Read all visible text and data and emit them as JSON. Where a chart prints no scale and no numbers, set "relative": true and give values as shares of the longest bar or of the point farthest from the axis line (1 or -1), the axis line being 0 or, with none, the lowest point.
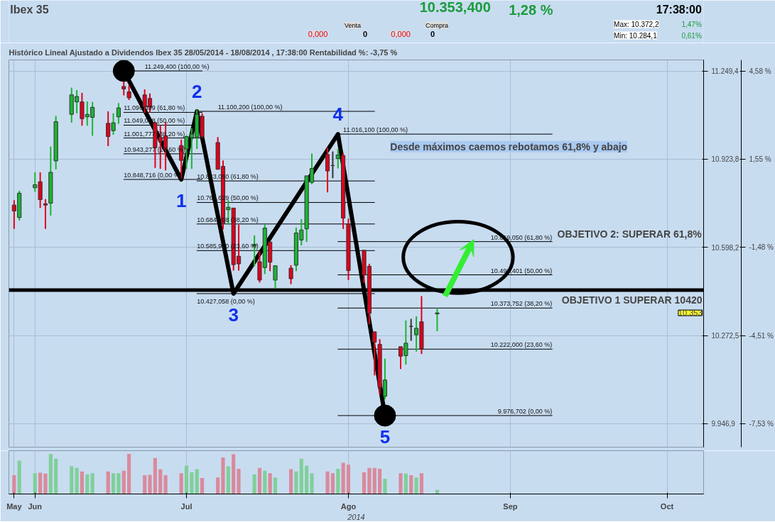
{
  "chart_data": [
    {
      "type": "candlestick",
      "title": "Ibex 35",
      "subtitle": "Histórico Lineal Ajustado a Dividendos Ibex 35 28/05/2014 - 18/08/2014 , 17:38:00 Rentabilidad %: -3,75 %",
      "x": [
        "2014-05-29",
        "2014-05-30",
        "2014-06-02",
        "2014-06-03",
        "2014-06-04",
        "2014-06-05",
        "2014-06-06",
        "2014-06-09",
        "2014-06-10",
        "2014-06-11",
        "2014-06-12",
        "2014-06-13",
        "2014-06-16",
        "2014-06-17",
        "2014-06-18",
        "2014-06-19",
        "2014-06-20",
        "2014-06-23",
        "2014-06-24",
        "2014-06-25",
        "2014-06-26",
        "2014-06-27",
        "2014-06-30",
        "2014-07-01",
        "2014-07-02",
        "2014-07-03",
        "2014-07-04",
        "2014-07-07",
        "2014-07-08",
        "2014-07-09",
        "2014-07-10",
        "2014-07-11",
        "2014-07-14",
        "2014-07-15",
        "2014-07-16",
        "2014-07-17",
        "2014-07-18",
        "2014-07-21",
        "2014-07-22",
        "2014-07-23",
        "2014-07-24",
        "2014-07-25",
        "2014-07-28",
        "2014-07-29",
        "2014-07-30",
        "2014-07-31",
        "2014-08-01",
        "2014-08-04",
        "2014-08-05",
        "2014-08-06",
        "2014-08-07",
        "2014-08-08",
        "2014-08-11",
        "2014-08-12",
        "2014-08-13",
        "2014-08-14",
        "2014-08-15",
        "2014-08-18"
      ],
      "ohlc": [
        [
          10754,
          10772,
          10666,
          10732
        ],
        [
          10708,
          10807,
          10697,
          10798
        ],
        [
          10818,
          10875,
          10803,
          10829
        ],
        [
          10840,
          10875,
          10743,
          10774
        ],
        [
          10759,
          10776,
          10666,
          10754
        ],
        [
          10761,
          10970,
          10715,
          10875
        ],
        [
          10917,
          11084,
          10886,
          11062
        ],
        [
          11089,
          11188,
          11058,
          11161
        ],
        [
          11135,
          11179,
          11093,
          11155
        ],
        [
          11135,
          11168,
          11047,
          11073
        ],
        [
          11080,
          11137,
          11047,
          11089
        ],
        [
          11078,
          11135,
          11010,
          11115
        ],
        [
          11056,
          11100,
          10972,
          11007
        ],
        [
          11029,
          11093,
          11014,
          11058
        ],
        [
          11080,
          11131,
          11054,
          11113
        ],
        [
          11192,
          11210,
          11159,
          11183
        ],
        [
          11172,
          11197,
          11142,
          11150
        ],
        [
          11161,
          11181,
          11095,
          11117
        ],
        [
          11148,
          11166,
          11095,
          11115
        ],
        [
          11058,
          11062,
          10891,
          10966
        ],
        [
          11005,
          11049,
          10888,
          10988
        ],
        [
          11010,
          11060,
          10882,
          10961
        ],
        [
          10974,
          10996,
          10853,
          10919
        ],
        [
          10961,
          11012,
          10888,
          11007
        ],
        [
          11003,
          11038,
          10888,
          11016
        ],
        [
          11005,
          11106,
          10961,
          11089
        ],
        [
          11082,
          11093,
          11001,
          11007
        ],
        [
          10985,
          11005,
          10886,
          10886
        ],
        [
          10897,
          10919,
          10664,
          10686
        ],
        [
          10737,
          10772,
          10682,
          10746
        ],
        [
          10743,
          10743,
          10512,
          10534
        ],
        [
          10565,
          10682,
          10512,
          10537
        ],
        [
          10603,
          10642,
          10528,
          10609
        ],
        [
          10545,
          10583,
          10468,
          10477
        ],
        [
          10523,
          10682,
          10499,
          10669
        ],
        [
          10618,
          10618,
          10510,
          10543
        ],
        [
          10477,
          10530,
          10446,
          10530
        ],
        [
          10521,
          10532,
          10462,
          10482
        ],
        [
          10532,
          10671,
          10510,
          10651
        ],
        [
          10625,
          10702,
          10605,
          10662
        ],
        [
          10666,
          10862,
          10618,
          10862
        ],
        [
          10838,
          10944,
          10831,
          10889
        ],
        [
          10941,
          10966,
          10801,
          10880
        ],
        [
          10900,
          10952,
          10853,
          10900
        ],
        [
          10926,
          10961,
          10889,
          10939
        ],
        [
          10937,
          10946,
          10666,
          10706
        ],
        [
          10684,
          10704,
          10477,
          10512
        ],
        [
          10587,
          10587,
          10466,
          10497
        ],
        [
          10528,
          10537,
          10314,
          10354
        ],
        [
          10286,
          10286,
          10125,
          10248
        ],
        [
          10240,
          10259,
          10055,
          10081
        ],
        [
          10048,
          10187,
          10037,
          10108
        ],
        [
          10231,
          10231,
          10149,
          10196
        ],
        [
          10198,
          10328,
          10165,
          10244
        ],
        [
          10306,
          10334,
          10253,
          10306
        ],
        [
          10275,
          10343,
          10213,
          10299
        ],
        [
          10323,
          10418,
          10204,
          10224
        ],
        [
          10352,
          10374,
          10288,
          10356
        ]
      ],
      "colors": [
        "#e0001b",
        "#1ab532",
        "#1ab532",
        "#e0001b",
        "#e0001b",
        "#1ab532",
        "#1ab532",
        "#1ab532",
        "#1ab532",
        "#e0001b",
        "#1ab532",
        "#1ab532",
        "#e0001b",
        "#1ab532",
        "#1ab532",
        "#e0001b",
        "#e0001b",
        "#e0001b",
        "#e0001b",
        "#e0001b",
        "#e0001b",
        "#e0001b",
        "#e0001b",
        "#1ab532",
        "#1ab532",
        "#1ab532",
        "#e0001b",
        "#e0001b",
        "#e0001b",
        "#1ab532",
        "#e0001b",
        "#e0001b",
        "#1ab532",
        "#e0001b",
        "#1ab532",
        "#e0001b",
        "#1ab532",
        "#e0001b",
        "#1ab532",
        "#1ab532",
        "#1ab532",
        "#1ab532",
        "#e0001b",
        "#333333",
        "#1ab532",
        "#e0001b",
        "#e0001b",
        "#e0001b",
        "#e0001b",
        "#e0001b",
        "#e0001b",
        "#1ab532",
        "#e0001b",
        "#1ab532",
        "#333333",
        "#1ab532",
        "#e0001b",
        "#1ab532"
      ],
      "xlim": [
        "2014-05-28",
        "2014-10-08"
      ],
      "ylim": [
        9860,
        11290
      ],
      "xticks": [
        {
          "value": "2014-05-29",
          "label": null
        },
        {
          "value": "2014-06-02",
          "label": null
        },
        {
          "value": "2014-07-01",
          "label": null
        },
        {
          "value": "2014-08-01",
          "label": null
        },
        {
          "value": "2014-09-01",
          "label": null
        },
        {
          "value": "2014-10-01",
          "label": null
        }
      ],
      "yticks": [
        {
          "value": 11249.4,
          "label": "11.249,4"
        },
        {
          "value": 10923.8,
          "label": "10.923,8"
        },
        {
          "value": 10598.2,
          "label": "10.598,2"
        },
        {
          "value": 10272.5,
          "label": "10.272,5"
        },
        {
          "value": 9946.9,
          "label": "9.946,9"
        }
      ],
      "y2lim": [
        -8.34,
        4.96
      ],
      "y2ticks": [
        {
          "value": 4.58,
          "label": "4,58 %"
        },
        {
          "value": 1.55,
          "label": "1,55 %"
        },
        {
          "value": -1.48,
          "label": "-1,48 %"
        },
        {
          "value": -4.51,
          "label": "-4,51 %"
        },
        {
          "value": -7.53,
          "label": "-7,53 %"
        }
      ],
      "grid": true,
      "tick_labels": "y",
      "series": [
        {
          "type": "line",
          "color": "#000000",
          "x": [
            "2014-06-19",
            "2014-07-04"
          ],
          "values": [
            11249.4,
            11249.4
          ]
        },
        {
          "type": "line",
          "color": "#000000",
          "x": [
            "2014-06-19",
            "2014-07-04"
          ],
          "values": [
            11096.339,
            11096.339
          ]
        },
        {
          "type": "line",
          "color": "#000000",
          "x": [
            "2014-06-19",
            "2014-07-04"
          ],
          "values": [
            11049.058,
            11049.058
          ]
        },
        {
          "type": "line",
          "color": "#000000",
          "x": [
            "2014-06-19",
            "2014-07-04"
          ],
          "values": [
            11001.777,
            11001.777
          ]
        },
        {
          "type": "line",
          "color": "#000000",
          "x": [
            "2014-06-19",
            "2014-07-04"
          ],
          "values": [
            10943.277,
            10943.277
          ]
        },
        {
          "type": "line",
          "color": "#000000",
          "x": [
            "2014-06-19",
            "2014-07-04"
          ],
          "values": [
            10848.716,
            10848.716
          ]
        },
        {
          "type": "line",
          "color": "#000000",
          "x": [
            "2014-07-03",
            "2014-08-06"
          ],
          "values": [
            11100.2,
            11100.2
          ]
        },
        {
          "type": "line",
          "color": "#000000",
          "x": [
            "2014-07-03",
            "2014-08-06"
          ],
          "values": [
            10843.06,
            10843.06
          ]
        },
        {
          "type": "line",
          "color": "#000000",
          "x": [
            "2014-07-03",
            "2014-08-06"
          ],
          "values": [
            10763.629,
            10763.629
          ]
        },
        {
          "type": "line",
          "color": "#000000",
          "x": [
            "2014-07-03",
            "2014-08-06"
          ],
          "values": [
            10684.198,
            10684.198
          ]
        },
        {
          "type": "line",
          "color": "#000000",
          "x": [
            "2014-07-03",
            "2014-08-06"
          ],
          "values": [
            10585.92,
            10585.92
          ]
        },
        {
          "type": "line",
          "color": "#000000",
          "x": [
            "2014-07-03",
            "2014-08-06"
          ],
          "values": [
            10427.058,
            10427.058
          ]
        },
        {
          "type": "line",
          "color": "#000000",
          "x": [
            "2014-07-30",
            "2014-09-09"
          ],
          "values": [
            11016.1,
            11016.1
          ]
        },
        {
          "type": "line",
          "color": "#000000",
          "x": [
            "2014-07-30",
            "2014-09-09"
          ],
          "values": [
            10619.05,
            10619.05
          ]
        },
        {
          "type": "line",
          "color": "#000000",
          "x": [
            "2014-07-30",
            "2014-09-09"
          ],
          "values": [
            10496.401,
            10496.401
          ]
        },
        {
          "type": "line",
          "color": "#000000",
          "x": [
            "2014-07-30",
            "2014-09-09"
          ],
          "values": [
            10373.752,
            10373.752
          ]
        },
        {
          "type": "line",
          "color": "#000000",
          "x": [
            "2014-07-30",
            "2014-09-09"
          ],
          "values": [
            10222.0,
            10222.0
          ]
        },
        {
          "type": "line",
          "color": "#000000",
          "x": [
            "2014-07-30",
            "2014-09-09"
          ],
          "values": [
            9976.702,
            9976.702
          ]
        },
        {
          "type": "line",
          "color": "#000000",
          "x": [
            "2014-06-19",
            "2014-06-30",
            "2014-07-03",
            "2014-07-10",
            "2014-07-30",
            "2014-08-08"
          ],
          "values": [
            11249.4,
            10848.7,
            11100.2,
            10427,
            11016.1,
            9976.7
          ]
        },
        {
          "type": "scatter",
          "color": "#000000",
          "marker": "circle",
          "x": [
            "2014-06-19",
            "2014-08-08"
          ],
          "values": [
            11249.4,
            9976.7
          ]
        }
      ],
      "ref_lines": [
        {
          "axis": "y",
          "value": 10440,
          "label": "OBJETIVO 1 SUPERAR 10420",
          "color": "#000000"
        }
      ],
      "annotations": [
        "10.353,400",
        "1,28 %",
        "Venta",
        "0,000",
        "0",
        "Compra",
        "0,000",
        "0",
        "17:38:00",
        "Max: 10.372,2",
        "1,47%",
        "Min: 10.284,1",
        "0,61%",
        "Desde máximos caemos rebotamos 61,8% y abajo",
        "OBJETIVO 2: SUPERAR 61,8%",
        "10.353",
        {
          "text": "11.249,400 (100,00 %)",
          "x": "2014-06-23",
          "y": 11249.4
        },
        {
          "text": "11.096,339 (61,80 %)",
          "x": "2014-06-19",
          "y": 11096.339
        },
        {
          "text": "11.049,058 (50,00 %)",
          "x": "2014-06-19",
          "y": 11049.058
        },
        {
          "text": "11.001,777 (38,20 %)",
          "x": "2014-06-19",
          "y": 11001.777
        },
        {
          "text": "10.943,277 (23,60 %)",
          "x": "2014-06-19",
          "y": 10943.277
        },
        {
          "text": "10.848,716 (0,00 %)",
          "x": "2014-06-19",
          "y": 10848.716
        },
        {
          "text": "11.100,200 (100,00 %)",
          "x": "2014-07-07",
          "y": 11100.2
        },
        {
          "text": "10.843,060 (61,80 %)",
          "x": "2014-07-03",
          "y": 10843.06
        },
        {
          "text": "10.763,629 (50,00 %)",
          "x": "2014-07-03",
          "y": 10763.629
        },
        {
          "text": "10.684,198 (38,20 %)",
          "x": "2014-07-03",
          "y": 10684.198
        },
        {
          "text": "10.585,920 (23,60 %)",
          "x": "2014-07-03",
          "y": 10585.92
        },
        {
          "text": "10.427,058 (0,00 %)",
          "x": "2014-07-03",
          "y": 10427.058
        },
        {
          "text": "11.016,100 (100,00 %)",
          "x": "2014-07-31",
          "y": 11016.1
        },
        {
          "text": "10.619,050 (61,80 %)",
          "x": "2014-09-09",
          "y": 10619.05
        },
        {
          "text": "10.496,401 (50,00 %)",
          "x": "2014-09-09",
          "y": 10496.401
        },
        {
          "text": "10.373,752 (38,20 %)",
          "x": "2014-09-09",
          "y": 10373.752
        },
        {
          "text": "10.222,000 (23,60 %)",
          "x": "2014-09-09",
          "y": 10222.0
        },
        {
          "text": "9.976,702 (0,00 %)",
          "x": "2014-09-09",
          "y": 9976.702
        },
        {
          "text": "1",
          "x": "2014-06-30",
          "y": 10848.7
        },
        {
          "text": "2",
          "x": "2014-07-03",
          "y": 11100.2
        },
        {
          "text": "3",
          "x": "2014-07-10",
          "y": 10427
        },
        {
          "text": "4",
          "x": "2014-07-30",
          "y": 11016.1
        },
        {
          "text": "5",
          "x": "2014-08-08",
          "y": 9976.7
        }
      ]
    },
    {
      "type": "bar",
      "relative": true,
      "xlabel": "2014",
      "x": [
        "2014-05-29",
        "2014-05-30",
        "2014-06-02",
        "2014-06-03",
        "2014-06-04",
        "2014-06-05",
        "2014-06-06",
        "2014-06-09",
        "2014-06-10",
        "2014-06-11",
        "2014-06-12",
        "2014-06-13",
        "2014-06-16",
        "2014-06-17",
        "2014-06-18",
        "2014-06-19",
        "2014-06-20",
        "2014-06-23",
        "2014-06-24",
        "2014-06-25",
        "2014-06-26",
        "2014-06-27",
        "2014-06-30",
        "2014-07-01",
        "2014-07-02",
        "2014-07-03",
        "2014-07-04",
        "2014-07-07",
        "2014-07-08",
        "2014-07-09",
        "2014-07-10",
        "2014-07-11",
        "2014-07-14",
        "2014-07-15",
        "2014-07-16",
        "2014-07-17",
        "2014-07-18",
        "2014-07-21",
        "2014-07-22",
        "2014-07-23",
        "2014-07-24",
        "2014-07-25",
        "2014-07-28",
        "2014-07-29",
        "2014-07-30",
        "2014-07-31",
        "2014-08-01",
        "2014-08-04",
        "2014-08-05",
        "2014-08-06",
        "2014-08-07",
        "2014-08-08",
        "2014-08-11",
        "2014-08-12",
        "2014-08-13",
        "2014-08-14",
        "2014-08-15",
        "2014-08-18"
      ],
      "values": [
        0.47,
        0.83,
        0.52,
        0.53,
        0.51,
        1,
        0.88,
        0.69,
        0.65,
        0.56,
        0.49,
        0.52,
        0.56,
        0.52,
        0.52,
        0.58,
        1,
        0.47,
        0.48,
        0.9,
        0.62,
        0.47,
        0.52,
        0.71,
        0.54,
        0.62,
        0.4,
        0.41,
        0.91,
        0.69,
        0.99,
        0.63,
        0.49,
        0.65,
        0.58,
        0.52,
        0.41,
        0.62,
        0.56,
        0.88,
        0.71,
        0.52,
        0.56,
        0.52,
        0.63,
        0.78,
        0.73,
        0.54,
        0.65,
        0.65,
        0.63,
        0.38,
        0.52,
        0.51,
        0.47,
        0.41,
        0.52,
        0.1
      ],
      "colors": [
        "#d98a9c",
        "#80cf9a",
        "#80cf9a",
        "#d98a9c",
        "#d98a9c",
        "#80cf9a",
        "#80cf9a",
        "#80cf9a",
        "#80cf9a",
        "#d98a9c",
        "#80cf9a",
        "#80cf9a",
        "#d98a9c",
        "#80cf9a",
        "#80cf9a",
        "#d98a9c",
        "#d98a9c",
        "#d98a9c",
        "#d98a9c",
        "#d98a9c",
        "#d98a9c",
        "#d98a9c",
        "#d98a9c",
        "#80cf9a",
        "#80cf9a",
        "#80cf9a",
        "#d98a9c",
        "#d98a9c",
        "#d98a9c",
        "#80cf9a",
        "#d98a9c",
        "#d98a9c",
        "#80cf9a",
        "#d98a9c",
        "#80cf9a",
        "#d98a9c",
        "#80cf9a",
        "#d98a9c",
        "#80cf9a",
        "#80cf9a",
        "#80cf9a",
        "#80cf9a",
        "#d98a9c",
        "#d98a9c",
        "#80cf9a",
        "#d98a9c",
        "#d98a9c",
        "#d98a9c",
        "#d98a9c",
        "#d98a9c",
        "#d98a9c",
        "#80cf9a",
        "#d98a9c",
        "#80cf9a",
        "#d98a9c",
        "#80cf9a",
        "#d98a9c",
        "#80cf9a"
      ],
      "xlim": [
        "2014-05-28",
        "2014-10-08"
      ],
      "xticks": [
        {
          "value": "2014-05-29",
          "label": "May"
        },
        {
          "value": "2014-06-02",
          "label": "Jun"
        },
        {
          "value": "2014-07-01",
          "label": "Jul"
        },
        {
          "value": "2014-08-01",
          "label": "Ago"
        },
        {
          "value": "2014-09-01",
          "label": "Sep"
        },
        {
          "value": "2014-10-01",
          "label": "Oct"
        }
      ],
      "grid": "x"
    }
  ]
}
